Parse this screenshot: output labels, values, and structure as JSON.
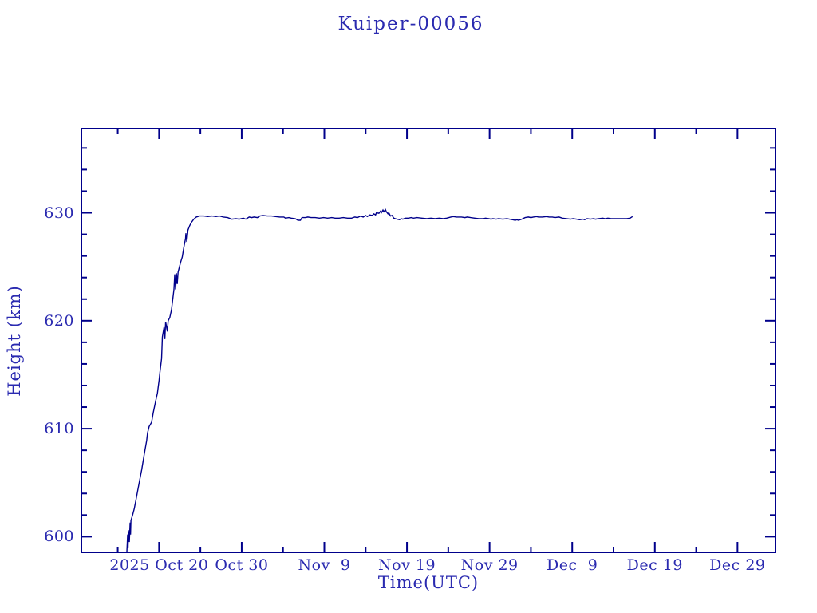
{
  "page": {
    "background": "#ffffff"
  },
  "chart_data": {
    "type": "line",
    "title": "Kuiper-00056",
    "xlabel": "Time(UTC)",
    "ylabel": "Height (km)",
    "grid": false,
    "legend": null,
    "colors": {
      "line": "#00008b",
      "frame": "#00008b",
      "text": "#2a2ab0",
      "background": "#ffffff"
    },
    "x_axis_note": "days measured relative to 2025 Oct 20 00:00 UTC",
    "xlim_days": [
      -9.4,
      74.6
    ],
    "ylim": [
      598.55,
      637.8
    ],
    "x_major_ticks": [
      {
        "day": 0,
        "label": "2025 Oct 20"
      },
      {
        "day": 10,
        "label": "Oct 30"
      },
      {
        "day": 20,
        "label": "Nov  9"
      },
      {
        "day": 30,
        "label": "Nov 19"
      },
      {
        "day": 40,
        "label": "Nov 29"
      },
      {
        "day": 50,
        "label": "Dec  9"
      },
      {
        "day": 60,
        "label": "Dec 19"
      },
      {
        "day": 70,
        "label": "Dec 29"
      }
    ],
    "x_minor_ticks_days": [
      -5,
      5,
      15,
      25,
      35,
      45,
      55,
      65
    ],
    "y_major_ticks": [
      {
        "value": 600,
        "label": "600"
      },
      {
        "value": 610,
        "label": "610"
      },
      {
        "value": 620,
        "label": "620"
      },
      {
        "value": 630,
        "label": "630"
      }
    ],
    "y_minor_ticks": [
      602,
      604,
      606,
      608,
      612,
      614,
      616,
      618,
      622,
      624,
      626,
      628,
      632,
      634,
      636
    ],
    "series": [
      {
        "name": "height_km",
        "points": [
          [
            -3.9,
            598.6
          ],
          [
            -3.8,
            600.2
          ],
          [
            -3.75,
            599.0
          ],
          [
            -3.7,
            600.6
          ],
          [
            -3.6,
            599.5
          ],
          [
            -3.5,
            601.3
          ],
          [
            -3.45,
            600.2
          ],
          [
            -3.4,
            601.5
          ],
          [
            -3.2,
            602.0
          ],
          [
            -3.0,
            602.6
          ],
          [
            -2.8,
            603.4
          ],
          [
            -2.6,
            604.2
          ],
          [
            -2.3,
            605.4
          ],
          [
            -2.1,
            606.2
          ],
          [
            -1.8,
            607.6
          ],
          [
            -1.5,
            608.9
          ],
          [
            -1.4,
            609.6
          ],
          [
            -1.2,
            610.2
          ],
          [
            -0.9,
            610.6
          ],
          [
            -0.7,
            611.5
          ],
          [
            -0.4,
            612.6
          ],
          [
            -0.2,
            613.3
          ],
          [
            0.0,
            614.5
          ],
          [
            0.1,
            615.2
          ],
          [
            0.3,
            616.5
          ],
          [
            0.4,
            618.5
          ],
          [
            0.6,
            619.4
          ],
          [
            0.7,
            618.3
          ],
          [
            0.8,
            619.9
          ],
          [
            1.0,
            619.0
          ],
          [
            1.1,
            620.0
          ],
          [
            1.3,
            620.3
          ],
          [
            1.5,
            621.0
          ],
          [
            1.8,
            622.9
          ],
          [
            1.9,
            624.3
          ],
          [
            2.0,
            622.9
          ],
          [
            2.1,
            624.4
          ],
          [
            2.2,
            623.4
          ],
          [
            2.3,
            624.5
          ],
          [
            2.6,
            625.4
          ],
          [
            2.8,
            625.9
          ],
          [
            3.0,
            626.8
          ],
          [
            3.2,
            627.6
          ],
          [
            3.25,
            628.1
          ],
          [
            3.35,
            627.3
          ],
          [
            3.5,
            628.4
          ],
          [
            3.7,
            628.8
          ],
          [
            3.9,
            629.1
          ],
          [
            4.2,
            629.4
          ],
          [
            4.5,
            629.6
          ],
          [
            4.9,
            629.7
          ],
          [
            5.4,
            629.7
          ],
          [
            5.9,
            629.65
          ],
          [
            6.4,
            629.7
          ],
          [
            6.9,
            629.65
          ],
          [
            7.3,
            629.7
          ],
          [
            7.8,
            629.6
          ],
          [
            8.3,
            629.55
          ],
          [
            8.8,
            629.4
          ],
          [
            9.3,
            629.45
          ],
          [
            9.7,
            629.4
          ],
          [
            10.2,
            629.5
          ],
          [
            10.5,
            629.4
          ],
          [
            10.9,
            629.6
          ],
          [
            11.2,
            629.55
          ],
          [
            11.5,
            629.6
          ],
          [
            11.9,
            629.55
          ],
          [
            12.2,
            629.7
          ],
          [
            12.6,
            629.75
          ],
          [
            13.1,
            629.7
          ],
          [
            13.6,
            629.7
          ],
          [
            14.1,
            629.65
          ],
          [
            14.6,
            629.6
          ],
          [
            15.1,
            629.6
          ],
          [
            15.3,
            629.5
          ],
          [
            15.7,
            629.55
          ],
          [
            16.0,
            629.5
          ],
          [
            16.5,
            629.45
          ],
          [
            16.8,
            629.3
          ],
          [
            17.1,
            629.3
          ],
          [
            17.3,
            629.55
          ],
          [
            17.7,
            629.55
          ],
          [
            18.0,
            629.6
          ],
          [
            18.4,
            629.55
          ],
          [
            18.9,
            629.55
          ],
          [
            19.4,
            629.5
          ],
          [
            19.9,
            629.55
          ],
          [
            20.4,
            629.5
          ],
          [
            20.9,
            629.55
          ],
          [
            21.3,
            629.5
          ],
          [
            21.8,
            629.5
          ],
          [
            22.3,
            629.55
          ],
          [
            22.8,
            629.5
          ],
          [
            23.3,
            629.5
          ],
          [
            23.7,
            629.6
          ],
          [
            24.0,
            629.55
          ],
          [
            24.4,
            629.7
          ],
          [
            24.7,
            629.6
          ],
          [
            25.0,
            629.75
          ],
          [
            25.2,
            629.65
          ],
          [
            25.5,
            629.8
          ],
          [
            25.8,
            629.75
          ],
          [
            26.0,
            629.9
          ],
          [
            26.2,
            629.8
          ],
          [
            26.3,
            630.0
          ],
          [
            26.6,
            629.95
          ],
          [
            26.8,
            630.15
          ],
          [
            26.9,
            630.0
          ],
          [
            27.1,
            630.25
          ],
          [
            27.2,
            630.1
          ],
          [
            27.4,
            630.3
          ],
          [
            27.5,
            630.1
          ],
          [
            27.7,
            629.9
          ],
          [
            27.8,
            630.0
          ],
          [
            28.0,
            629.7
          ],
          [
            28.2,
            629.75
          ],
          [
            28.4,
            629.5
          ],
          [
            28.6,
            629.45
          ],
          [
            28.8,
            629.4
          ],
          [
            29.1,
            629.35
          ],
          [
            29.3,
            629.45
          ],
          [
            29.5,
            629.4
          ],
          [
            29.8,
            629.5
          ],
          [
            30.2,
            629.5
          ],
          [
            30.5,
            629.55
          ],
          [
            30.8,
            629.5
          ],
          [
            31.2,
            629.55
          ],
          [
            31.8,
            629.5
          ],
          [
            32.4,
            629.45
          ],
          [
            32.9,
            629.5
          ],
          [
            33.4,
            629.45
          ],
          [
            33.9,
            629.5
          ],
          [
            34.4,
            629.45
          ],
          [
            34.8,
            629.5
          ],
          [
            35.3,
            629.6
          ],
          [
            35.6,
            629.65
          ],
          [
            36.0,
            629.6
          ],
          [
            36.6,
            629.6
          ],
          [
            37.0,
            629.55
          ],
          [
            37.3,
            629.6
          ],
          [
            37.7,
            629.55
          ],
          [
            38.2,
            629.5
          ],
          [
            38.7,
            629.45
          ],
          [
            39.2,
            629.45
          ],
          [
            39.5,
            629.5
          ],
          [
            39.9,
            629.45
          ],
          [
            40.2,
            629.4
          ],
          [
            40.4,
            629.45
          ],
          [
            40.8,
            629.4
          ],
          [
            41.1,
            629.45
          ],
          [
            41.6,
            629.4
          ],
          [
            42.1,
            629.45
          ],
          [
            42.4,
            629.4
          ],
          [
            42.8,
            629.35
          ],
          [
            43.1,
            629.3
          ],
          [
            43.3,
            629.35
          ],
          [
            43.5,
            629.3
          ],
          [
            43.9,
            629.4
          ],
          [
            44.3,
            629.55
          ],
          [
            44.7,
            629.6
          ],
          [
            45.0,
            629.55
          ],
          [
            45.3,
            629.6
          ],
          [
            45.7,
            629.65
          ],
          [
            45.9,
            629.6
          ],
          [
            46.4,
            629.6
          ],
          [
            46.9,
            629.65
          ],
          [
            47.2,
            629.6
          ],
          [
            47.6,
            629.6
          ],
          [
            47.9,
            629.55
          ],
          [
            48.4,
            629.6
          ],
          [
            48.8,
            629.5
          ],
          [
            49.3,
            629.45
          ],
          [
            49.8,
            629.4
          ],
          [
            50.1,
            629.45
          ],
          [
            50.5,
            629.4
          ],
          [
            50.9,
            629.35
          ],
          [
            51.3,
            629.4
          ],
          [
            51.5,
            629.35
          ],
          [
            51.8,
            629.45
          ],
          [
            52.2,
            629.4
          ],
          [
            52.6,
            629.45
          ],
          [
            52.8,
            629.4
          ],
          [
            53.2,
            629.45
          ],
          [
            53.7,
            629.5
          ],
          [
            54.0,
            629.45
          ],
          [
            54.3,
            629.5
          ],
          [
            54.7,
            629.45
          ],
          [
            55.1,
            629.45
          ],
          [
            55.6,
            629.45
          ],
          [
            56.1,
            629.45
          ],
          [
            56.6,
            629.45
          ],
          [
            57.0,
            629.5
          ],
          [
            57.3,
            629.65
          ]
        ]
      }
    ]
  }
}
